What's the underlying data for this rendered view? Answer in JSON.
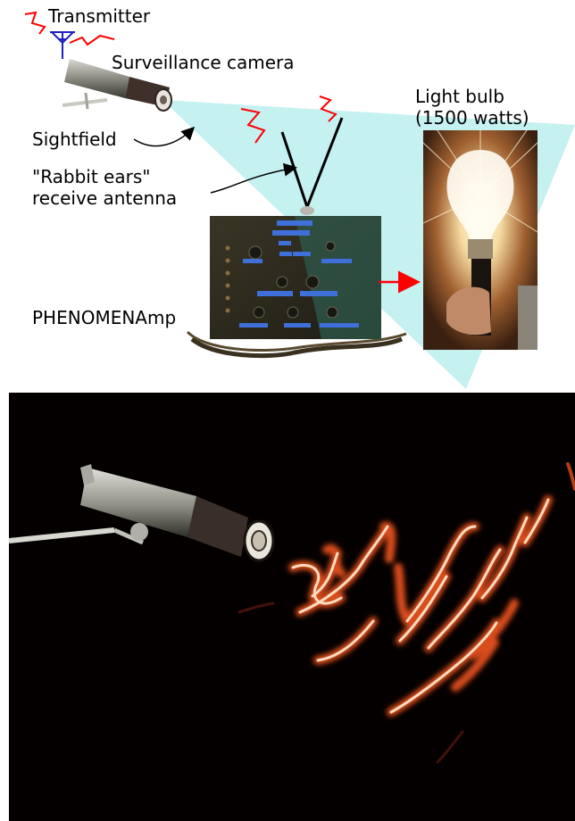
{
  "labels": {
    "transmitter": "Transmitter",
    "camera": "Surveillance camera",
    "light_bulb_line1": "Light bulb",
    "light_bulb_line2": "(1500 watts)",
    "sightfield": "Sightfield",
    "rabbit_ears_line1": "\"Rabbit ears\"",
    "rabbit_ears_line2": "receive antenna",
    "amp": "PHENOMENAmp"
  },
  "colors": {
    "sightfield_fill": "#bff0f0",
    "signal": "#ff0000",
    "transmitter_antenna": "#2020c0",
    "arrow": "#ff0000",
    "streak": "#ff5a20",
    "streak_core": "#ffe0c0",
    "background_photo": "#050000"
  }
}
